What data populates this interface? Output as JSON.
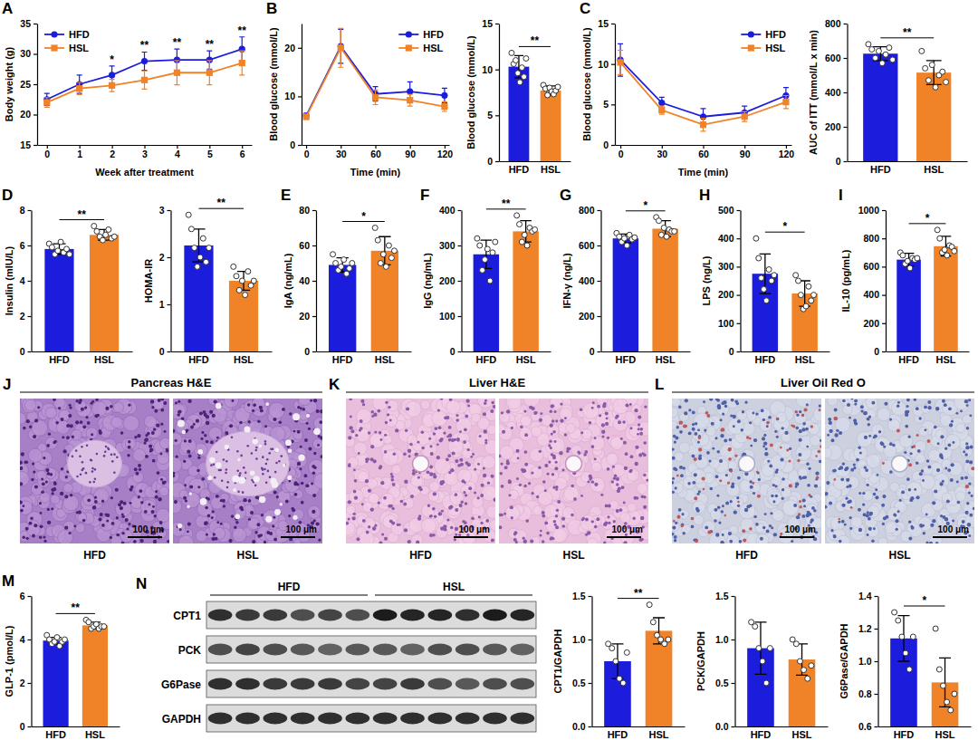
{
  "chart_data": [
    {
      "panel": "A",
      "type": "line",
      "x_label": "Week after treatment",
      "y_label": "Body weight (g)",
      "x": [
        0,
        1,
        2,
        3,
        4,
        5,
        6
      ],
      "xlim": [
        -0.3,
        6.3
      ],
      "xticks": [
        0,
        1,
        2,
        3,
        4,
        5,
        6
      ],
      "ylim": [
        15,
        35
      ],
      "yticks": [
        15,
        20,
        25,
        30,
        35
      ],
      "legend": "top-left",
      "series": [
        {
          "name": "HFD",
          "color": "#1c1cdc",
          "marker": "circle",
          "values": [
            22.5,
            25.0,
            26.5,
            28.8,
            29.0,
            29.0,
            30.8
          ],
          "errors": [
            1.0,
            1.5,
            1.5,
            1.5,
            1.8,
            1.5,
            2.0
          ]
        },
        {
          "name": "HSL",
          "color": "#f08228",
          "marker": "square",
          "values": [
            22.0,
            24.3,
            24.8,
            25.7,
            26.9,
            26.9,
            28.5
          ],
          "errors": [
            0.8,
            1.0,
            1.0,
            1.5,
            2.0,
            2.0,
            2.0
          ]
        }
      ],
      "annotations": [
        {
          "x": 2,
          "text": "*"
        },
        {
          "x": 3,
          "text": "**"
        },
        {
          "x": 4,
          "text": "**"
        },
        {
          "x": 5,
          "text": "**"
        },
        {
          "x": 6,
          "text": "**"
        }
      ]
    },
    {
      "panel": "B",
      "type": "line",
      "x_label": "Time (min)",
      "y_label": "Blood glucose (mmol/L)",
      "x": [
        0,
        30,
        60,
        90,
        120
      ],
      "xlim": [
        -4,
        124
      ],
      "xticks": [
        0,
        30,
        60,
        90,
        120
      ],
      "ylim": [
        0,
        25
      ],
      "yticks": [
        0,
        10,
        20
      ],
      "legend": "top-right",
      "series": [
        {
          "name": "HFD",
          "color": "#1c1cdc",
          "marker": "circle",
          "values": [
            6.0,
            20.3,
            10.5,
            11.0,
            10.2
          ],
          "errors": [
            0.5,
            3.5,
            1.5,
            2.0,
            1.5
          ]
        },
        {
          "name": "HSL",
          "color": "#f08228",
          "marker": "square",
          "values": [
            5.8,
            20.0,
            9.8,
            9.2,
            7.9
          ],
          "errors": [
            0.5,
            4.0,
            1.5,
            1.2,
            1.0
          ]
        }
      ]
    },
    {
      "type": "bar",
      "y_label": "Blood glucose (mmol/L)",
      "categories": [
        "HFD",
        "HSL"
      ],
      "values": [
        10.3,
        7.7
      ],
      "errors": [
        1.2,
        0.5
      ],
      "points": [
        [
          11.8,
          10.6,
          11.0,
          9.6,
          8.6,
          10.2,
          9.2,
          11.2
        ],
        [
          8.3,
          7.9,
          7.2,
          8.0,
          7.6,
          7.3,
          7.7,
          8.1
        ]
      ],
      "colors": [
        "#1c1cdc",
        "#f08228"
      ],
      "ylim": [
        0,
        15
      ],
      "yticks": [
        0,
        5,
        10,
        15
      ],
      "significance": "**"
    },
    {
      "panel": "C",
      "type": "line",
      "x_label": "Time (min)",
      "y_label": "Blood glucose (mmol/L)",
      "x": [
        0,
        30,
        60,
        90,
        120
      ],
      "xlim": [
        -4,
        124
      ],
      "xticks": [
        0,
        30,
        60,
        90,
        120
      ],
      "ylim": [
        0,
        15
      ],
      "yticks": [
        0,
        5,
        10,
        15
      ],
      "legend": "top-right",
      "series": [
        {
          "name": "HFD",
          "color": "#1c1cdc",
          "marker": "circle",
          "values": [
            10.5,
            5.2,
            3.5,
            4.0,
            6.1
          ],
          "errors": [
            2.0,
            0.7,
            1.0,
            0.8,
            1.0
          ]
        },
        {
          "name": "HSL",
          "color": "#f08228",
          "marker": "square",
          "values": [
            10.2,
            4.3,
            2.5,
            3.5,
            5.3
          ],
          "errors": [
            1.5,
            0.5,
            0.8,
            0.6,
            0.8
          ]
        }
      ]
    },
    {
      "type": "bar",
      "y_label": "AUC of ITT (mmol/L x min)",
      "categories": [
        "HFD",
        "HSL"
      ],
      "values": [
        625,
        515
      ],
      "errors": [
        40,
        70
      ],
      "points": [
        [
          680,
          650,
          600,
          640,
          570,
          620,
          660,
          590
        ],
        [
          640,
          540,
          470,
          560,
          430,
          500,
          520,
          460
        ]
      ],
      "colors": [
        "#1c1cdc",
        "#f08228"
      ],
      "ylim": [
        0,
        800
      ],
      "yticks": [
        0,
        200,
        400,
        600,
        800
      ],
      "significance": "**"
    },
    {
      "panel": "D",
      "type": "bar",
      "y_label": "Insulin (mIU/L)",
      "categories": [
        "HFD",
        "HSL"
      ],
      "values": [
        5.8,
        6.6
      ],
      "errors": [
        0.3,
        0.3
      ],
      "points": [
        [
          6.1,
          5.9,
          5.5,
          5.7,
          6.2,
          5.6,
          5.8,
          5.5
        ],
        [
          7.1,
          6.8,
          6.5,
          6.3,
          6.6,
          6.9,
          6.4,
          6.5
        ]
      ],
      "colors": [
        "#1c1cdc",
        "#f08228"
      ],
      "ylim": [
        0,
        8
      ],
      "yticks": [
        0,
        2,
        4,
        6,
        8
      ],
      "significance": "**"
    },
    {
      "type": "bar",
      "y_label": "HOMA-IR",
      "categories": [
        "HFD",
        "HSL"
      ],
      "values": [
        2.25,
        1.5
      ],
      "errors": [
        0.35,
        0.2
      ],
      "points": [
        [
          2.9,
          2.6,
          2.2,
          1.8,
          2.0,
          2.4,
          1.9,
          2.2
        ],
        [
          1.8,
          1.6,
          1.3,
          1.5,
          1.2,
          1.7,
          1.4,
          1.5
        ]
      ],
      "colors": [
        "#1c1cdc",
        "#f08228"
      ],
      "ylim": [
        0,
        3
      ],
      "yticks": [
        0,
        1,
        2,
        3
      ],
      "significance": "**"
    },
    {
      "panel": "E",
      "type": "bar",
      "y_label": "IgA (ng/mL)",
      "categories": [
        "HFD",
        "HSL"
      ],
      "values": [
        49,
        57
      ],
      "errors": [
        4,
        8
      ],
      "points": [
        [
          55,
          50,
          46,
          48,
          52,
          44,
          47,
          50
        ],
        [
          70,
          63,
          50,
          55,
          48,
          60,
          53,
          57
        ]
      ],
      "colors": [
        "#1c1cdc",
        "#f08228"
      ],
      "ylim": [
        0,
        80
      ],
      "yticks": [
        0,
        20,
        40,
        60,
        80
      ],
      "significance": "*"
    },
    {
      "panel": "F",
      "type": "bar",
      "y_label": "IgG (ng/mL)",
      "categories": [
        "HFD",
        "HSL"
      ],
      "values": [
        275,
        340
      ],
      "errors": [
        40,
        30
      ],
      "points": [
        [
          320,
          300,
          230,
          260,
          290,
          200,
          280,
          310
        ],
        [
          385,
          360,
          310,
          330,
          300,
          350,
          340,
          345
        ]
      ],
      "colors": [
        "#1c1cdc",
        "#f08228"
      ],
      "ylim": [
        0,
        400
      ],
      "yticks": [
        0,
        100,
        200,
        300,
        400
      ],
      "significance": "**"
    },
    {
      "panel": "G",
      "type": "bar",
      "y_label": "IFN-γ (ng/L)",
      "categories": [
        "HFD",
        "HSL"
      ],
      "values": [
        640,
        695
      ],
      "errors": [
        25,
        45
      ],
      "points": [
        [
          670,
          650,
          620,
          640,
          600,
          660,
          635,
          645
        ],
        [
          760,
          740,
          660,
          700,
          650,
          690,
          680,
          680
        ]
      ],
      "colors": [
        "#1c1cdc",
        "#f08228"
      ],
      "ylim": [
        0,
        800
      ],
      "yticks": [
        0,
        200,
        400,
        600,
        800
      ],
      "significance": "*"
    },
    {
      "panel": "H",
      "type": "bar",
      "y_label": "LPS (ng/L)",
      "categories": [
        "HFD",
        "HSL"
      ],
      "values": [
        275,
        205
      ],
      "errors": [
        70,
        45
      ],
      "points": [
        [
          400,
          330,
          260,
          220,
          180,
          290,
          250,
          270
        ],
        [
          270,
          250,
          200,
          150,
          160,
          230,
          180,
          200
        ]
      ],
      "colors": [
        "#1c1cdc",
        "#f08228"
      ],
      "ylim": [
        0,
        500
      ],
      "yticks": [
        0,
        100,
        200,
        300,
        400,
        500
      ],
      "significance": "*"
    },
    {
      "panel": "I",
      "type": "bar",
      "y_label": "IL-10 (pg/mL)",
      "categories": [
        "HFD",
        "HSL"
      ],
      "values": [
        650,
        745
      ],
      "errors": [
        45,
        70
      ],
      "points": [
        [
          700,
          680,
          620,
          640,
          590,
          660,
          650,
          660
        ],
        [
          860,
          800,
          700,
          720,
          680,
          750,
          740,
          710
        ]
      ],
      "colors": [
        "#1c1cdc",
        "#f08228"
      ],
      "ylim": [
        0,
        1000
      ],
      "yticks": [
        0,
        200,
        400,
        600,
        800,
        1000
      ],
      "significance": "*"
    },
    {
      "panel": "M",
      "type": "bar",
      "y_label": "GLP-1 (pmol/L)",
      "categories": [
        "HFD",
        "HSL"
      ],
      "values": [
        3.95,
        4.65
      ],
      "errors": [
        0.15,
        0.15
      ],
      "points": [
        [
          4.2,
          4.0,
          3.8,
          3.9,
          4.1,
          3.7,
          3.9,
          4.0
        ],
        [
          4.9,
          4.8,
          4.5,
          4.6,
          4.7,
          4.5,
          4.6,
          4.6
        ]
      ],
      "colors": [
        "#1c1cdc",
        "#f08228"
      ],
      "ylim": [
        0,
        6
      ],
      "yticks": [
        0,
        2,
        4,
        6
      ],
      "significance": "**"
    },
    {
      "type": "bar",
      "y_label": "CPT1/GAPDH",
      "categories": [
        "HFD",
        "HSL"
      ],
      "values": [
        0.75,
        1.1
      ],
      "errors": [
        0.2,
        0.15
      ],
      "points": [
        [
          0.95,
          0.9,
          0.75,
          0.55,
          0.5,
          0.85
        ],
        [
          1.4,
          1.2,
          1.05,
          1.0,
          0.95,
          1.0
        ]
      ],
      "colors": [
        "#1c1cdc",
        "#f08228"
      ],
      "ylim": [
        0,
        1.5
      ],
      "yticks": [
        {
          "value": 0,
          "label": "0.0"
        },
        0.5,
        {
          "value": 1,
          "label": "1.0"
        },
        1.5
      ],
      "significance": "**"
    },
    {
      "type": "bar",
      "y_label": "PCK/GAPDH",
      "categories": [
        "HFD",
        "HSL"
      ],
      "values": [
        0.9,
        0.77
      ],
      "errors": [
        0.3,
        0.18
      ],
      "points": [
        [
          1.2,
          1.15,
          0.9,
          0.75,
          0.5,
          0.9
        ],
        [
          1.0,
          0.95,
          0.75,
          0.65,
          0.55,
          0.7
        ]
      ],
      "colors": [
        "#1c1cdc",
        "#f08228"
      ],
      "ylim": [
        0,
        1.5
      ],
      "yticks": [
        {
          "value": 0,
          "label": "0.0"
        },
        0.5,
        {
          "value": 1,
          "label": "1.0"
        },
        1.5
      ]
    },
    {
      "type": "bar",
      "y_label": "G6Pase/GAPDH",
      "categories": [
        "HFD",
        "HSL"
      ],
      "values": [
        1.14,
        0.87
      ],
      "errors": [
        0.14,
        0.15
      ],
      "points": [
        [
          1.3,
          1.25,
          1.15,
          1.05,
          0.95,
          1.15
        ],
        [
          1.2,
          0.95,
          0.85,
          0.75,
          0.7,
          0.8
        ]
      ],
      "colors": [
        "#1c1cdc",
        "#f08228"
      ],
      "ylim": [
        0.6,
        1.4
      ],
      "yticks": [
        0.6,
        0.8,
        {
          "value": 1,
          "label": "1.0"
        },
        1.2,
        1.4
      ],
      "significance": "*"
    }
  ],
  "micrographs": [
    {
      "panel": "J",
      "title": "Pancreas H&E",
      "labels": [
        "HFD",
        "HSL"
      ],
      "scale_bar": "100 μm"
    },
    {
      "panel": "K",
      "title": "Liver H&E",
      "labels": [
        "HFD",
        "HSL"
      ],
      "scale_bar": "100 μm"
    },
    {
      "panel": "L",
      "title": "Liver Oil Red O",
      "labels": [
        "HFD",
        "HSL"
      ],
      "scale_bar": "100 μm"
    }
  ],
  "western_blot": {
    "panel": "N",
    "groups": [
      "HFD",
      "HSL"
    ],
    "rows": [
      "CPT1",
      "PCK",
      "G6Pase",
      "GAPDH"
    ]
  }
}
